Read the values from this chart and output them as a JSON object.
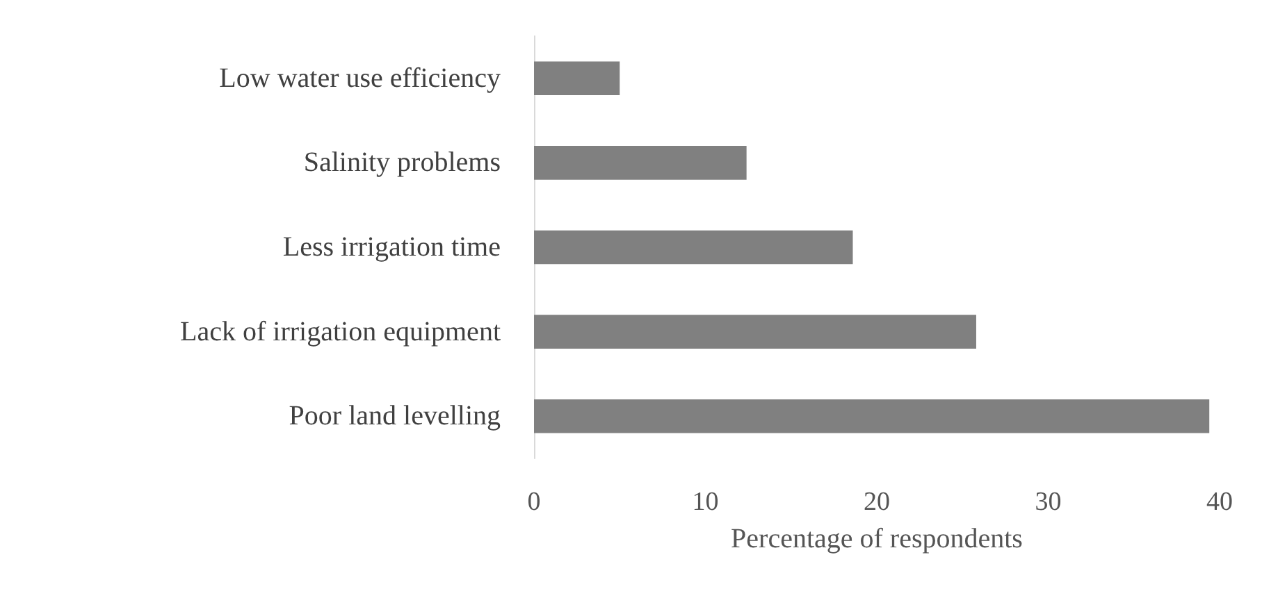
{
  "chart_data": {
    "type": "bar",
    "orientation": "horizontal",
    "xlabel": "Percentage of respondents",
    "categories": [
      "Low water use efficiency",
      "Salinity problems",
      "Less irrigation time",
      "Lack of irrigation equipment",
      "Poor land levelling"
    ],
    "values": [
      5,
      12.4,
      18.6,
      25.8,
      39.4
    ],
    "color": "#808080",
    "xlim": [
      0,
      40
    ],
    "xticks": [
      0,
      10,
      20,
      30,
      40
    ],
    "grid": false
  }
}
